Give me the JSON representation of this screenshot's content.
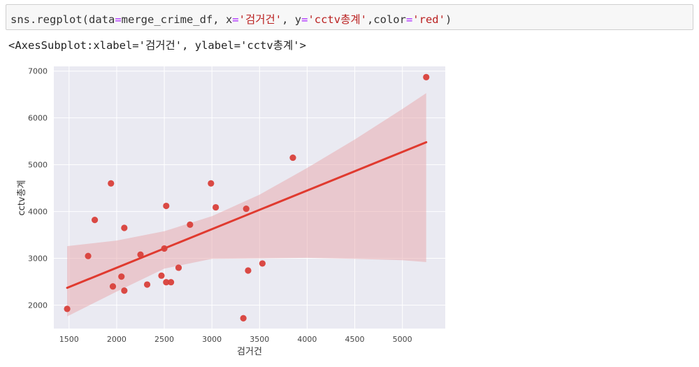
{
  "cell": {
    "code_tokens": [
      {
        "t": "sns.regplot(data",
        "c": "kw"
      },
      {
        "t": "=",
        "c": "op"
      },
      {
        "t": "merge_crime_df, x",
        "c": "kw"
      },
      {
        "t": "=",
        "c": "op"
      },
      {
        "t": "'검거건'",
        "c": "str"
      },
      {
        "t": ", y",
        "c": "kw"
      },
      {
        "t": "=",
        "c": "op"
      },
      {
        "t": "'cctv총계'",
        "c": "str"
      },
      {
        "t": ",color",
        "c": "kw"
      },
      {
        "t": "=",
        "c": "op"
      },
      {
        "t": "'red'",
        "c": "str"
      },
      {
        "t": ")",
        "c": "kw"
      }
    ],
    "output": "<AxesSubplot:xlabel='검거건', ylabel='cctv총계'>"
  },
  "chart_data": {
    "type": "scatter",
    "xlabel": "검거건",
    "ylabel": "cctv총계",
    "xlim": [
      1340,
      5450
    ],
    "ylim": [
      1500,
      7100
    ],
    "xticks": [
      1500,
      2000,
      2500,
      3000,
      3500,
      4000,
      4500,
      5000
    ],
    "yticks": [
      2000,
      3000,
      4000,
      5000,
      6000,
      7000
    ],
    "grid": true,
    "background": "#eaeaf2",
    "point_color": "#d9403a",
    "line_color": "#e03a2f",
    "band_color": "#e8a5aa",
    "points": [
      {
        "x": 1480,
        "y": 1920
      },
      {
        "x": 1700,
        "y": 3050
      },
      {
        "x": 1770,
        "y": 3820
      },
      {
        "x": 1940,
        "y": 4600
      },
      {
        "x": 1960,
        "y": 2400
      },
      {
        "x": 2050,
        "y": 2610
      },
      {
        "x": 2080,
        "y": 3650
      },
      {
        "x": 2080,
        "y": 2310
      },
      {
        "x": 2250,
        "y": 3080
      },
      {
        "x": 2320,
        "y": 2440
      },
      {
        "x": 2470,
        "y": 2630
      },
      {
        "x": 2500,
        "y": 3210
      },
      {
        "x": 2520,
        "y": 4120
      },
      {
        "x": 2520,
        "y": 2490
      },
      {
        "x": 2570,
        "y": 2490
      },
      {
        "x": 2650,
        "y": 2800
      },
      {
        "x": 2770,
        "y": 3720
      },
      {
        "x": 2990,
        "y": 4600
      },
      {
        "x": 3040,
        "y": 4090
      },
      {
        "x": 3330,
        "y": 1720
      },
      {
        "x": 3360,
        "y": 4060
      },
      {
        "x": 3380,
        "y": 2740
      },
      {
        "x": 3530,
        "y": 2890
      },
      {
        "x": 3850,
        "y": 5150
      },
      {
        "x": 5250,
        "y": 6870
      }
    ],
    "regression": {
      "x": [
        1480,
        5250
      ],
      "y": [
        2370,
        5480
      ]
    },
    "ci_band": {
      "x": [
        1480,
        2000,
        2500,
        3000,
        3500,
        4000,
        4500,
        5000,
        5250
      ],
      "upper": [
        3260,
        3380,
        3580,
        3900,
        4360,
        4930,
        5540,
        6190,
        6530
      ],
      "lower": [
        1760,
        2290,
        2780,
        2990,
        3000,
        3010,
        2990,
        2960,
        2920
      ]
    }
  }
}
